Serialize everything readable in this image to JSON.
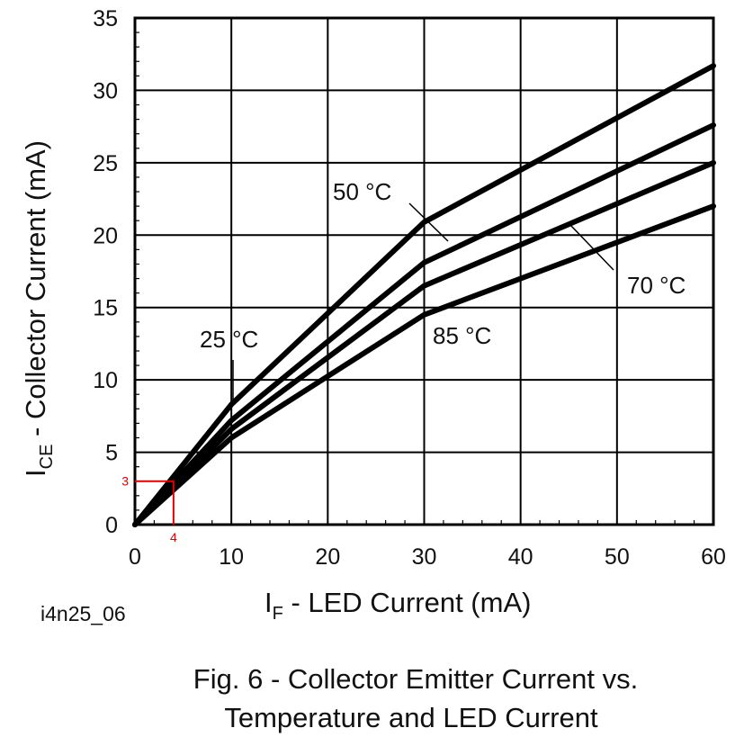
{
  "chart_data": {
    "type": "line",
    "x": [
      0,
      10,
      30,
      60
    ],
    "xlim": [
      0,
      60
    ],
    "ylim": [
      0,
      35
    ],
    "x_ticks": [
      "0",
      "10",
      "20",
      "30",
      "40",
      "50",
      "60"
    ],
    "y_ticks": [
      "0",
      "5",
      "10",
      "15",
      "20",
      "25",
      "30",
      "35"
    ],
    "grid": true,
    "xlabel": {
      "main": "I",
      "sub": "F",
      "rest": " - LED Current (mA)"
    },
    "ylabel": {
      "main": "I",
      "sub": "CE",
      "rest": " - Collector Current (mA)"
    },
    "series": [
      {
        "name": "25 °C",
        "values": [
          0,
          8.3,
          20.9,
          31.7
        ]
      },
      {
        "name": "50 °C",
        "values": [
          0,
          7.2,
          18.1,
          27.6
        ]
      },
      {
        "name": "70 °C",
        "values": [
          0,
          6.6,
          16.5,
          25.0
        ]
      },
      {
        "name": "85 °C",
        "values": [
          0,
          6.0,
          14.5,
          22.0
        ]
      }
    ],
    "labels": {
      "t25": "25 °C",
      "t50": "50 °C",
      "t70": "70 °C",
      "t85": "85 °C"
    },
    "marker": {
      "x": 4,
      "y": 3,
      "x_label": "4",
      "y_label": "3",
      "color": "#e00000"
    },
    "line_color": "#000000"
  },
  "figure_code": "i4n25_06",
  "caption": {
    "line1": "Fig. 6 - Collector Emitter Current vs.",
    "line2": "Temperature and LED Current"
  }
}
